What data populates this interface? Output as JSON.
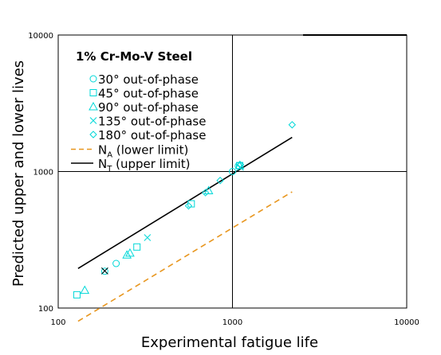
{
  "chart_data": {
    "type": "scatter",
    "title": "1% Cr-Mo-V Steel",
    "xlabel": "Experimental fatigue life",
    "ylabel": "Predicted upper and lower lives",
    "xscale": "log",
    "yscale": "log",
    "xlim": [
      100,
      10000
    ],
    "ylim": [
      100,
      10000
    ],
    "xticks": [
      "100",
      "1000",
      "10000"
    ],
    "yticks": [
      "100",
      "1000",
      "10000"
    ],
    "grid": "major lines at 1000 only",
    "legend_position": "top-left",
    "series": [
      {
        "name": "30° out-of-phase",
        "marker": "circle",
        "color": "#00d8d8",
        "points": [
          [
            185,
            186
          ],
          [
            215,
            212
          ],
          [
            1000,
            1000
          ],
          [
            1080,
            1100
          ]
        ]
      },
      {
        "name": "45° out-of-phase",
        "marker": "square",
        "color": "#00d8d8",
        "points": [
          [
            128,
            125
          ],
          [
            283,
            280
          ],
          [
            580,
            580
          ],
          [
            1100,
            1105
          ]
        ]
      },
      {
        "name": "90° out-of-phase",
        "marker": "triangle",
        "color": "#00d8d8",
        "points": [
          [
            142,
            135
          ],
          [
            248,
            245
          ],
          [
            258,
            253
          ],
          [
            730,
            725
          ],
          [
            1100,
            1110
          ]
        ]
      },
      {
        "name": "135° out-of-phase",
        "marker": "x",
        "color": "#00d8d8",
        "points": [
          [
            185,
            187
          ],
          [
            325,
            328
          ],
          [
            1110,
            1075
          ]
        ]
      },
      {
        "name": "180° out-of-phase",
        "marker": "diamond",
        "color": "#00d8d8",
        "points": [
          [
            560,
            560
          ],
          [
            700,
            700
          ],
          [
            850,
            860
          ],
          [
            1110,
            1120
          ],
          [
            2200,
            2200
          ]
        ]
      }
    ],
    "lines": [
      {
        "name": "N",
        "sub": "A",
        "suffix": " (lower limit)",
        "style": "dashed",
        "color": "#e8961e",
        "points": [
          [
            130,
            80
          ],
          [
            2200,
            710
          ]
        ]
      },
      {
        "name": "N",
        "sub": "T",
        "suffix": " (upper limit)",
        "style": "solid",
        "color": "#000000",
        "points": [
          [
            130,
            195
          ],
          [
            2200,
            1780
          ]
        ]
      }
    ],
    "special_points": [
      {
        "marker": "x",
        "color": "#000000",
        "x": 185,
        "y": 187
      }
    ]
  }
}
